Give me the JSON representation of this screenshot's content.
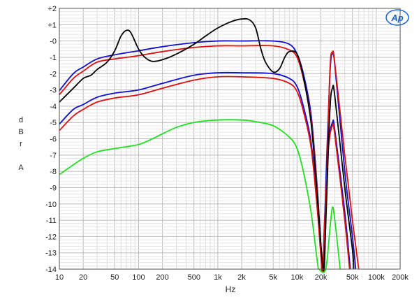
{
  "chart_data": {
    "type": "line",
    "xscale": "log",
    "xlim": [
      10,
      200000
    ],
    "ylim": [
      -14,
      2
    ],
    "xlabel": "Hz",
    "ylabel": "d\nB\nr\n\nA",
    "grid": true,
    "logo": "Ap",
    "x_ticks": [
      {
        "v": 10,
        "label": "10"
      },
      {
        "v": 20,
        "label": "20"
      },
      {
        "v": 50,
        "label": "50"
      },
      {
        "v": 100,
        "label": "100"
      },
      {
        "v": 200,
        "label": "200"
      },
      {
        "v": 500,
        "label": "500"
      },
      {
        "v": 1000,
        "label": "1k"
      },
      {
        "v": 2000,
        "label": "2k"
      },
      {
        "v": 5000,
        "label": "5k"
      },
      {
        "v": 10000,
        "label": "10k"
      },
      {
        "v": 20000,
        "label": "20k"
      },
      {
        "v": 50000,
        "label": "50k"
      },
      {
        "v": 100000,
        "label": "100k"
      },
      {
        "v": 200000,
        "label": "200k"
      }
    ],
    "y_ticks": [
      {
        "v": 2,
        "label": "+2"
      },
      {
        "v": 1,
        "label": "+1"
      },
      {
        "v": 0,
        "label": "-0"
      },
      {
        "v": -1,
        "label": "-1"
      },
      {
        "v": -2,
        "label": "-2"
      },
      {
        "v": -3,
        "label": "-3"
      },
      {
        "v": -4,
        "label": "-4"
      },
      {
        "v": -5,
        "label": "-5"
      },
      {
        "v": -6,
        "label": "-6"
      },
      {
        "v": -7,
        "label": "-7"
      },
      {
        "v": -8,
        "label": "-8"
      },
      {
        "v": -9,
        "label": "-9"
      },
      {
        "v": -10,
        "label": "-10"
      },
      {
        "v": -11,
        "label": "-11"
      },
      {
        "v": -12,
        "label": "-12"
      },
      {
        "v": -13,
        "label": "-13"
      },
      {
        "v": -14,
        "label": "-14"
      }
    ],
    "series": [
      {
        "color": "#1010d0",
        "points": [
          [
            10,
            -3.05
          ],
          [
            15,
            -2.0
          ],
          [
            20,
            -1.6
          ],
          [
            30,
            -1.1
          ],
          [
            50,
            -0.85
          ],
          [
            100,
            -0.6
          ],
          [
            200,
            -0.35
          ],
          [
            500,
            -0.1
          ],
          [
            1000,
            0.0
          ],
          [
            2000,
            0.0
          ],
          [
            5000,
            0.0
          ],
          [
            8000,
            -0.2
          ],
          [
            10000,
            -0.8
          ],
          [
            12000,
            -2.0
          ],
          [
            15000,
            -4.5
          ],
          [
            18000,
            -9.0
          ],
          [
            20000,
            -12.5
          ],
          [
            21500,
            -14.0
          ],
          [
            23000,
            -9.0
          ],
          [
            26000,
            -2.0
          ],
          [
            28000,
            -0.8
          ],
          [
            30000,
            -1.5
          ],
          [
            40000,
            -8.0
          ],
          [
            50000,
            -12.0
          ],
          [
            55000,
            -14.0
          ]
        ]
      },
      {
        "color": "#dd1010",
        "points": [
          [
            10,
            -3.3
          ],
          [
            15,
            -2.3
          ],
          [
            20,
            -1.85
          ],
          [
            30,
            -1.3
          ],
          [
            50,
            -1.1
          ],
          [
            100,
            -0.9
          ],
          [
            200,
            -0.65
          ],
          [
            500,
            -0.4
          ],
          [
            1000,
            -0.3
          ],
          [
            2000,
            -0.3
          ],
          [
            5000,
            -0.3
          ],
          [
            8000,
            -0.55
          ],
          [
            10000,
            -1.0
          ],
          [
            12000,
            -2.3
          ],
          [
            15000,
            -4.8
          ],
          [
            18000,
            -9.2
          ],
          [
            20000,
            -12.8
          ],
          [
            22000,
            -14.0
          ],
          [
            23500,
            -9.0
          ],
          [
            26000,
            -1.8
          ],
          [
            28000,
            -0.7
          ],
          [
            30000,
            -1.4
          ],
          [
            40000,
            -7.0
          ],
          [
            50000,
            -11.0
          ],
          [
            60000,
            -14.0
          ]
        ]
      },
      {
        "color": "#1010d0",
        "points": [
          [
            10,
            -5.1
          ],
          [
            15,
            -4.2
          ],
          [
            20,
            -3.9
          ],
          [
            30,
            -3.45
          ],
          [
            50,
            -3.2
          ],
          [
            100,
            -3.0
          ],
          [
            200,
            -2.6
          ],
          [
            500,
            -2.1
          ],
          [
            1000,
            -1.95
          ],
          [
            2000,
            -1.95
          ],
          [
            5000,
            -2.0
          ],
          [
            8000,
            -2.3
          ],
          [
            10000,
            -2.8
          ],
          [
            12000,
            -4.0
          ],
          [
            15000,
            -6.2
          ],
          [
            18000,
            -10.0
          ],
          [
            20000,
            -13.0
          ],
          [
            21000,
            -14.0
          ],
          [
            22500,
            -10.5
          ],
          [
            25000,
            -6.3
          ],
          [
            28000,
            -5.0
          ],
          [
            30000,
            -5.5
          ],
          [
            40000,
            -10.5
          ],
          [
            47000,
            -14.0
          ]
        ]
      },
      {
        "color": "#dd1010",
        "points": [
          [
            10,
            -5.5
          ],
          [
            15,
            -4.6
          ],
          [
            20,
            -4.2
          ],
          [
            30,
            -3.75
          ],
          [
            50,
            -3.5
          ],
          [
            100,
            -3.3
          ],
          [
            200,
            -2.9
          ],
          [
            500,
            -2.4
          ],
          [
            1000,
            -2.2
          ],
          [
            2000,
            -2.2
          ],
          [
            5000,
            -2.3
          ],
          [
            8000,
            -2.6
          ],
          [
            10000,
            -3.1
          ],
          [
            12000,
            -4.3
          ],
          [
            15000,
            -6.5
          ],
          [
            18000,
            -10.3
          ],
          [
            20000,
            -13.2
          ],
          [
            21000,
            -14.0
          ],
          [
            22500,
            -10.8
          ],
          [
            25000,
            -6.5
          ],
          [
            28000,
            -5.2
          ],
          [
            30000,
            -5.8
          ],
          [
            40000,
            -11.0
          ],
          [
            46000,
            -14.0
          ]
        ]
      },
      {
        "color": "#20e020",
        "points": [
          [
            10,
            -8.2
          ],
          [
            15,
            -7.6
          ],
          [
            20,
            -7.2
          ],
          [
            30,
            -6.8
          ],
          [
            50,
            -6.6
          ],
          [
            100,
            -6.35
          ],
          [
            150,
            -6.0
          ],
          [
            200,
            -5.7
          ],
          [
            300,
            -5.3
          ],
          [
            500,
            -5.0
          ],
          [
            1000,
            -4.85
          ],
          [
            2000,
            -4.85
          ],
          [
            3000,
            -4.95
          ],
          [
            5000,
            -5.2
          ],
          [
            8000,
            -5.9
          ],
          [
            10000,
            -6.6
          ],
          [
            12000,
            -8.0
          ],
          [
            15000,
            -10.5
          ],
          [
            18000,
            -13.5
          ],
          [
            19000,
            -14.0
          ],
          [
            23000,
            -14.0
          ],
          [
            26000,
            -11.5
          ],
          [
            28000,
            -10.2
          ],
          [
            30000,
            -11.0
          ],
          [
            35000,
            -14.0
          ]
        ]
      },
      {
        "color": "#000000",
        "points": [
          [
            10,
            -3.75
          ],
          [
            15,
            -2.9
          ],
          [
            20,
            -2.3
          ],
          [
            25,
            -2.1
          ],
          [
            30,
            -1.75
          ],
          [
            40,
            -1.3
          ],
          [
            50,
            -0.6
          ],
          [
            60,
            0.3
          ],
          [
            70,
            0.65
          ],
          [
            80,
            0.5
          ],
          [
            100,
            -0.5
          ],
          [
            120,
            -1.0
          ],
          [
            150,
            -1.25
          ],
          [
            200,
            -1.15
          ],
          [
            300,
            -0.8
          ],
          [
            500,
            -0.2
          ],
          [
            700,
            0.3
          ],
          [
            1000,
            0.8
          ],
          [
            1500,
            1.2
          ],
          [
            2000,
            1.35
          ],
          [
            2500,
            1.3
          ],
          [
            3000,
            0.8
          ],
          [
            3500,
            -0.5
          ],
          [
            4000,
            -1.3
          ],
          [
            5000,
            -1.9
          ],
          [
            6000,
            -1.7
          ],
          [
            7000,
            -1.0
          ],
          [
            8000,
            -0.65
          ],
          [
            10000,
            -0.8
          ],
          [
            12000,
            -2.2
          ],
          [
            15000,
            -5.0
          ],
          [
            18000,
            -9.5
          ],
          [
            20000,
            -12.5
          ],
          [
            21800,
            -14.0
          ],
          [
            23500,
            -10.0
          ],
          [
            26000,
            -4.2
          ],
          [
            28000,
            -2.9
          ],
          [
            30000,
            -3.4
          ],
          [
            40000,
            -9.0
          ],
          [
            50000,
            -12.8
          ],
          [
            52000,
            -14.0
          ]
        ]
      }
    ]
  }
}
